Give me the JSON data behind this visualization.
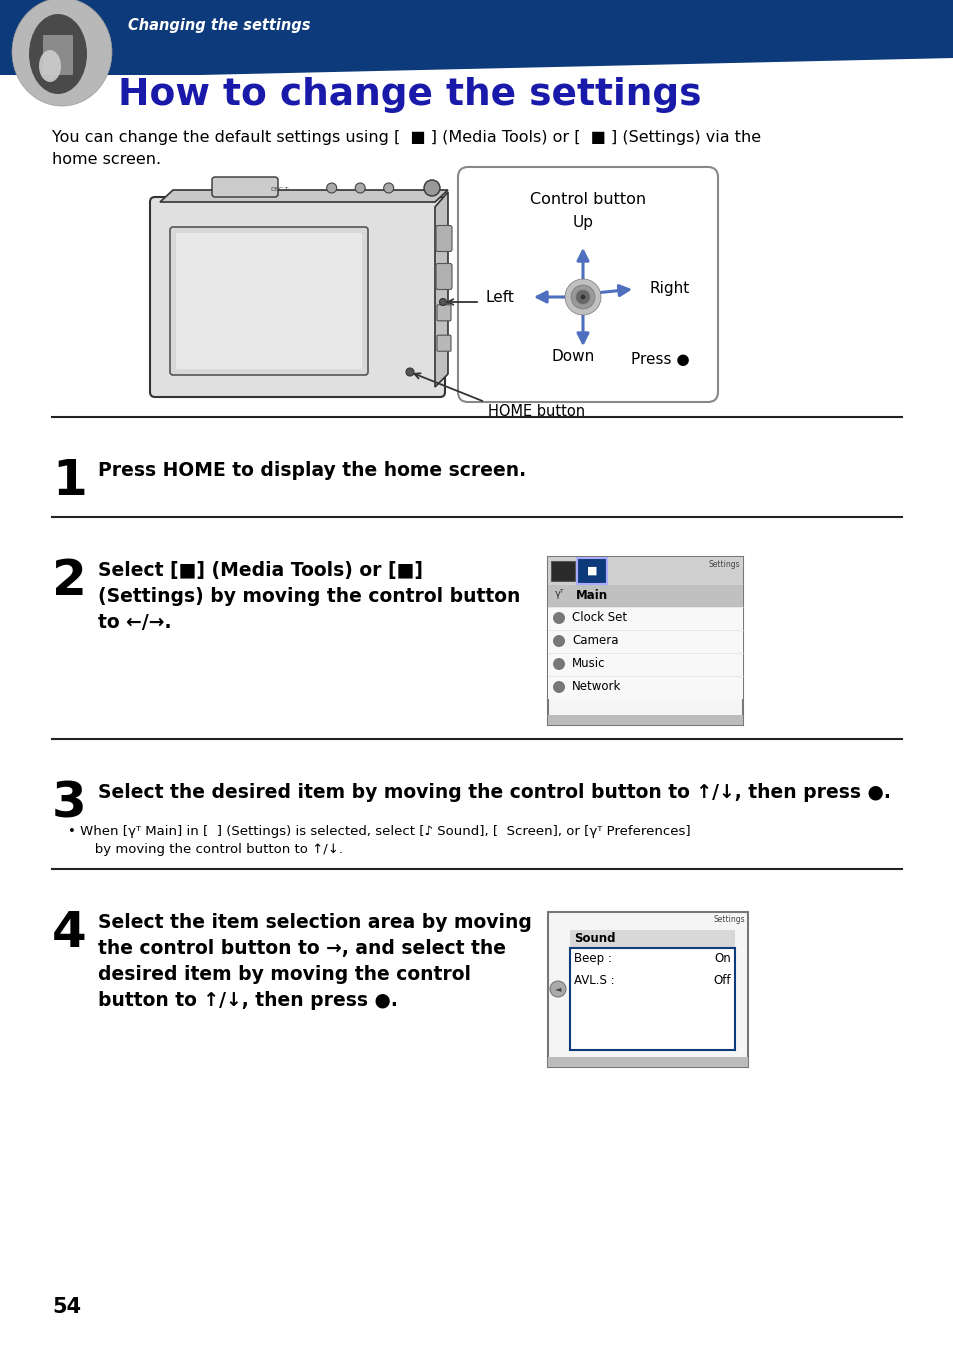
{
  "bg_color": "#ffffff",
  "dark_blue": "#0d3a7a",
  "medium_blue": "#1a1aaa",
  "arrow_blue": "#4d6fbe",
  "text_color": "#000000",
  "header_italic_text": "Changing the settings",
  "header_title": "How to change the settings",
  "body_line1": "You can change the default settings using [  ■ ] (Media Tools) or [  ■ ] (Settings) via the",
  "body_line2": "home screen.",
  "control_box_title": "Control button",
  "step1_num": "1",
  "step1_text": "Press HOME to display the home screen.",
  "step2_num": "2",
  "step2_line1": "Select [■] (Media Tools) or [■]",
  "step2_line2": "(Settings) by moving the control button",
  "step2_line3": "to ←/→.",
  "step3_num": "3",
  "step3_text": "Select the desired item by moving the control button to ↑/↓, then press ●.",
  "step3_sub": "• When [γᵀ Main] in [  ] (Settings) is selected, select [♪ Sound], [  Screen], or [γᵀ Preferences]",
  "step3_sub2": "   by moving the control button to ↑/↓.",
  "step4_num": "4",
  "step4_line1": "Select the item selection area by moving",
  "step4_line2": "the control button to →, and select the",
  "step4_line3": "desired item by moving the control",
  "step4_line4": "button to ↑/↓, then press ●.",
  "settings_items": [
    "Main",
    "Clock Set",
    "Camera",
    "Music",
    "Network"
  ],
  "HOME_label": "HOME button",
  "page_num": "54"
}
